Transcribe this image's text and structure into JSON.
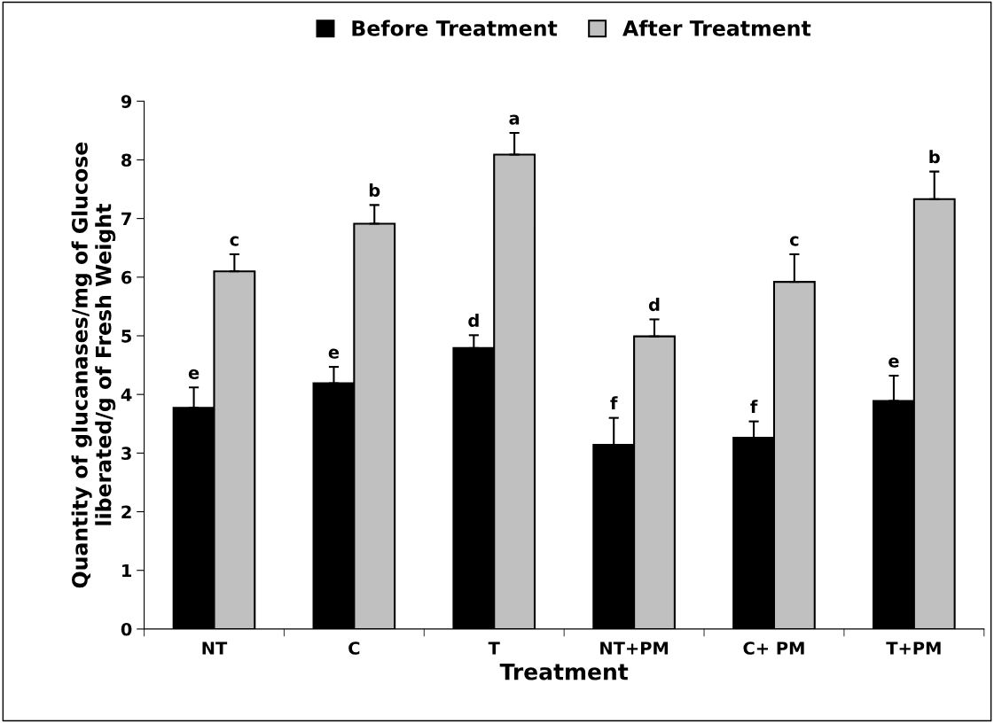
{
  "chart_data": {
    "type": "bar",
    "xlabel": "Treatment",
    "ylabel": "Quantity of glucanases/mg of Glucose\nliberated/g of Fresh Weight",
    "categories": [
      "NT",
      "C",
      "T",
      "NT+PM",
      "C+ PM",
      "T+PM"
    ],
    "series": [
      {
        "name": "Before Treatment",
        "color": "#000000",
        "values": [
          3.77,
          4.19,
          4.79,
          3.14,
          3.26,
          3.89
        ],
        "errors": [
          0.35,
          0.28,
          0.22,
          0.46,
          0.28,
          0.43
        ],
        "value_labels": [
          "e",
          "e",
          "d",
          "f",
          "f",
          "e"
        ]
      },
      {
        "name": "After Treatment",
        "color": "#c0c0c0",
        "values": [
          6.1,
          6.91,
          8.09,
          4.99,
          5.92,
          7.33
        ],
        "errors": [
          0.29,
          0.32,
          0.37,
          0.29,
          0.47,
          0.47
        ],
        "value_labels": [
          "c",
          "b",
          "a",
          "d",
          "c",
          "b"
        ]
      }
    ],
    "ylim": [
      0,
      9
    ],
    "yticks": [
      0,
      1,
      2,
      3,
      4,
      5,
      6,
      7,
      8,
      9
    ],
    "grid": false,
    "legend": "top"
  }
}
